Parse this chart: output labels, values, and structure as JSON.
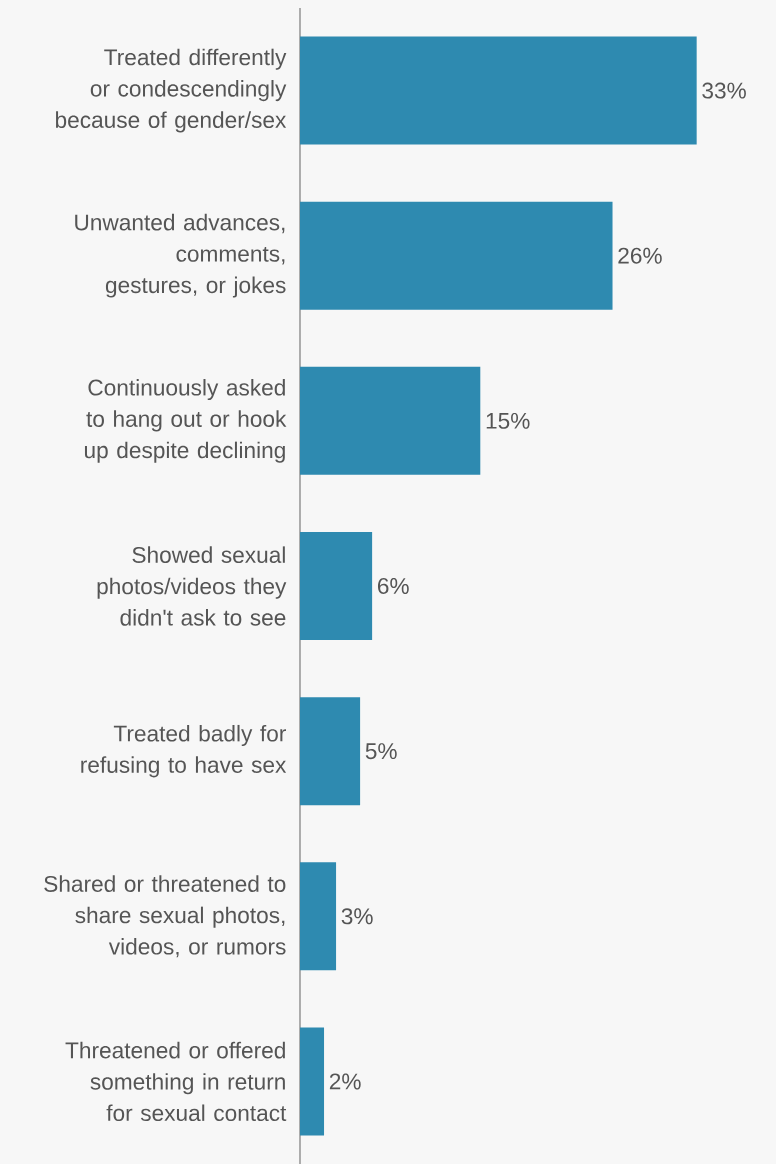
{
  "chart_data": {
    "type": "bar",
    "orientation": "horizontal",
    "color": "#2e8ab0",
    "categories": [
      "Treated differently or condescendingly because of gender/sex",
      "Unwanted advances, comments, gestures, or jokes",
      "Continuously asked to hang out or hook up despite declining",
      "Showed sexual photos/videos they didn't ask to see",
      "Treated badly for refusing to have sex",
      "Shared or threatened to share sexual photos, videos, or rumors",
      "Threatened or offered something in return for sexual contact"
    ],
    "values": [
      33,
      26,
      15,
      6,
      5,
      3,
      2
    ],
    "value_labels": [
      "33%",
      "26%",
      "15%",
      "6%",
      "5%",
      "3%",
      "2%"
    ]
  }
}
